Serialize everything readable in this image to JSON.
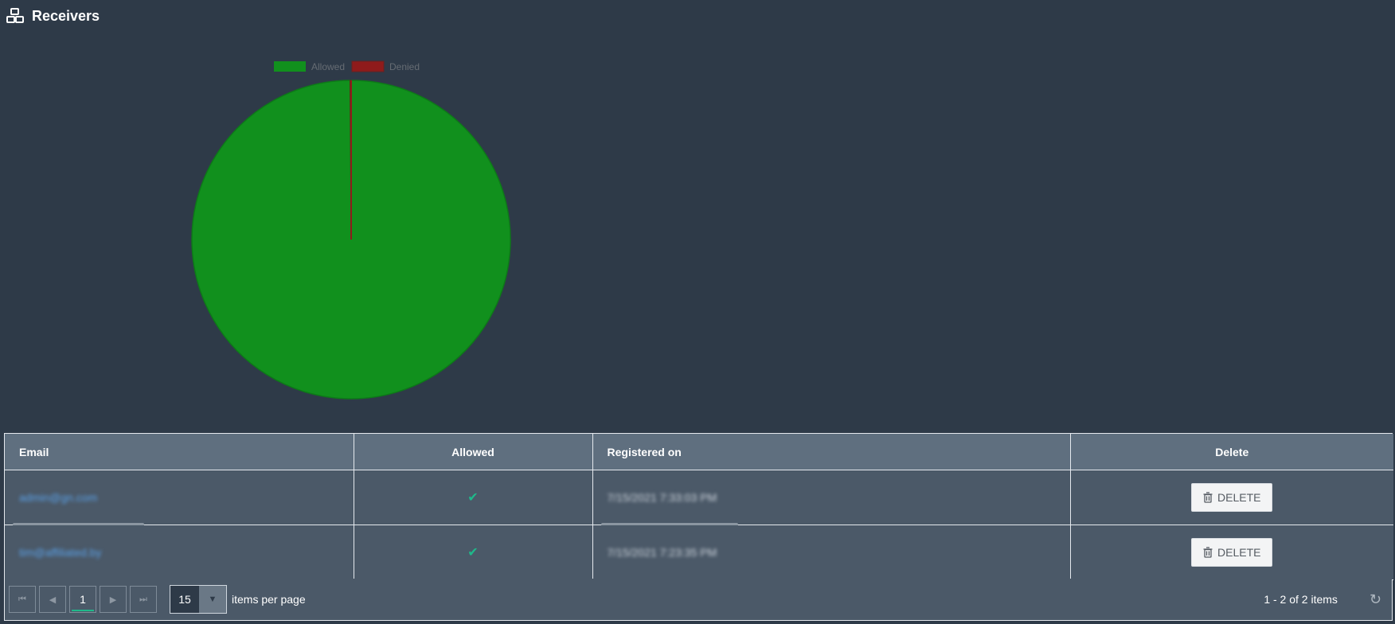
{
  "header": {
    "title": "Receivers",
    "icon": "cubes-icon"
  },
  "chart_data": {
    "type": "pie",
    "categories": [
      "Allowed",
      "Denied"
    ],
    "values": [
      99.9,
      0.1
    ],
    "colors": [
      "#11901d",
      "#8f1b1b"
    ],
    "legend_position": "top"
  },
  "table": {
    "columns": {
      "email": "Email",
      "allowed": "Allowed",
      "registered": "Registered on",
      "delete": "Delete"
    },
    "rows": [
      {
        "email": "admin@gn.com",
        "allowed": "✔",
        "registered": "7/15/2021 7:33:03 PM",
        "delete_label": "DELETE"
      },
      {
        "email": "tim@affiliated.by",
        "allowed": "✔",
        "registered": "7/15/2021 7:23:35 PM",
        "delete_label": "DELETE"
      }
    ]
  },
  "pager": {
    "current_page": "1",
    "page_size": "15",
    "items_per_page_label": "items per page",
    "info": "1 - 2 of 2 items"
  }
}
